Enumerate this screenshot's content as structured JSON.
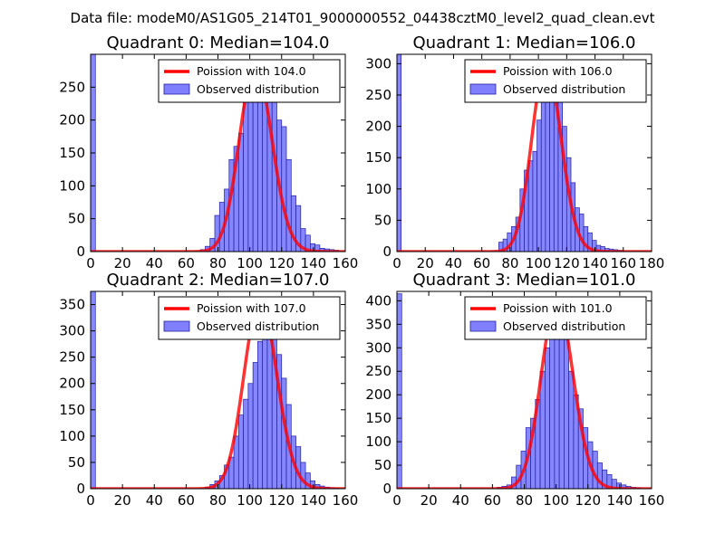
{
  "figure": {
    "title": "Data file: modeM0/AS1G05_214T01_9000000552_04438cztM0_level2_quad_clean.evt"
  },
  "colors": {
    "bar_fill": "#8080ff",
    "bar_edge": "#2020a0",
    "curve": "#ff0000"
  },
  "chart_data": [
    {
      "type": "bar",
      "title": "Quadrant 0: Median=104.0",
      "xlim": [
        0,
        160
      ],
      "ylim": [
        0,
        300
      ],
      "xticks": [
        0,
        20,
        40,
        60,
        80,
        100,
        120,
        140,
        160
      ],
      "yticks": [
        0,
        50,
        100,
        150,
        200,
        250
      ],
      "bin_width": 3,
      "bins": [
        [
          0,
          300
        ],
        [
          69,
          3
        ],
        [
          72,
          8
        ],
        [
          75,
          20
        ],
        [
          78,
          55
        ],
        [
          81,
          75
        ],
        [
          84,
          95
        ],
        [
          87,
          140
        ],
        [
          90,
          160
        ],
        [
          93,
          180
        ],
        [
          96,
          230
        ],
        [
          99,
          250
        ],
        [
          102,
          260
        ],
        [
          105,
          255
        ],
        [
          108,
          270
        ],
        [
          111,
          280
        ],
        [
          114,
          230
        ],
        [
          117,
          200
        ],
        [
          120,
          190
        ],
        [
          123,
          140
        ],
        [
          126,
          85
        ],
        [
          129,
          70
        ],
        [
          132,
          35
        ],
        [
          135,
          25
        ],
        [
          138,
          12
        ],
        [
          141,
          10
        ],
        [
          144,
          5
        ],
        [
          147,
          4
        ],
        [
          150,
          3
        ],
        [
          153,
          2
        ]
      ],
      "curve_mean": 104.0,
      "curve_peak": 283,
      "legend": {
        "curve": "Poission with 104.0",
        "bars": "Observed distribution"
      }
    },
    {
      "type": "bar",
      "title": "Quadrant 1: Median=106.0",
      "xlim": [
        0,
        180
      ],
      "ylim": [
        0,
        315
      ],
      "xticks": [
        0,
        20,
        40,
        60,
        80,
        100,
        120,
        140,
        160,
        180
      ],
      "yticks": [
        0,
        50,
        100,
        150,
        200,
        250,
        300
      ],
      "bin_width": 3,
      "bins": [
        [
          0,
          315
        ],
        [
          72,
          15
        ],
        [
          75,
          20
        ],
        [
          78,
          30
        ],
        [
          81,
          40
        ],
        [
          84,
          55
        ],
        [
          87,
          100
        ],
        [
          90,
          130
        ],
        [
          93,
          145
        ],
        [
          96,
          160
        ],
        [
          99,
          210
        ],
        [
          102,
          245
        ],
        [
          105,
          275
        ],
        [
          108,
          290
        ],
        [
          111,
          305
        ],
        [
          114,
          280
        ],
        [
          117,
          200
        ],
        [
          120,
          150
        ],
        [
          123,
          110
        ],
        [
          126,
          70
        ],
        [
          129,
          60
        ],
        [
          132,
          40
        ],
        [
          135,
          30
        ],
        [
          138,
          18
        ],
        [
          141,
          10
        ],
        [
          144,
          8
        ],
        [
          147,
          5
        ],
        [
          150,
          4
        ],
        [
          153,
          3
        ],
        [
          156,
          2
        ]
      ],
      "curve_mean": 106.0,
      "curve_peak": 300,
      "legend": {
        "curve": "Poission with 106.0",
        "bars": "Observed distribution"
      }
    },
    {
      "type": "bar",
      "title": "Quadrant 2: Median=107.0",
      "xlim": [
        0,
        160
      ],
      "ylim": [
        0,
        375
      ],
      "xticks": [
        0,
        20,
        40,
        60,
        80,
        100,
        120,
        140,
        160
      ],
      "yticks": [
        0,
        50,
        100,
        150,
        200,
        250,
        300,
        350
      ],
      "bin_width": 3,
      "bins": [
        [
          0,
          375
        ],
        [
          72,
          3
        ],
        [
          75,
          8
        ],
        [
          78,
          15
        ],
        [
          81,
          25
        ],
        [
          84,
          45
        ],
        [
          87,
          60
        ],
        [
          90,
          100
        ],
        [
          93,
          140
        ],
        [
          96,
          170
        ],
        [
          99,
          200
        ],
        [
          102,
          240
        ],
        [
          105,
          280
        ],
        [
          108,
          330
        ],
        [
          111,
          345
        ],
        [
          114,
          300
        ],
        [
          117,
          255
        ],
        [
          120,
          210
        ],
        [
          123,
          160
        ],
        [
          126,
          100
        ],
        [
          129,
          80
        ],
        [
          132,
          50
        ],
        [
          135,
          30
        ],
        [
          138,
          15
        ],
        [
          141,
          8
        ],
        [
          144,
          5
        ],
        [
          147,
          3
        ],
        [
          150,
          2
        ],
        [
          153,
          1
        ]
      ],
      "curve_mean": 107.0,
      "curve_peak": 357,
      "legend": {
        "curve": "Poission with 107.0",
        "bars": "Observed distribution"
      }
    },
    {
      "type": "bar",
      "title": "Quadrant 3: Median=101.0",
      "xlim": [
        0,
        160
      ],
      "ylim": [
        0,
        420
      ],
      "xticks": [
        0,
        20,
        40,
        60,
        80,
        100,
        120,
        140,
        160
      ],
      "yticks": [
        0,
        50,
        100,
        150,
        200,
        250,
        300,
        350,
        400
      ],
      "bin_width": 3,
      "bins": [
        [
          0,
          415
        ],
        [
          63,
          3
        ],
        [
          66,
          5
        ],
        [
          69,
          8
        ],
        [
          72,
          25
        ],
        [
          75,
          50
        ],
        [
          78,
          80
        ],
        [
          81,
          130
        ],
        [
          84,
          150
        ],
        [
          87,
          190
        ],
        [
          90,
          250
        ],
        [
          93,
          300
        ],
        [
          96,
          350
        ],
        [
          99,
          390
        ],
        [
          102,
          380
        ],
        [
          105,
          330
        ],
        [
          108,
          250
        ],
        [
          111,
          200
        ],
        [
          114,
          170
        ],
        [
          117,
          130
        ],
        [
          120,
          100
        ],
        [
          123,
          80
        ],
        [
          126,
          55
        ],
        [
          129,
          40
        ],
        [
          132,
          30
        ],
        [
          135,
          20
        ],
        [
          138,
          12
        ],
        [
          141,
          8
        ],
        [
          144,
          5
        ],
        [
          147,
          3
        ],
        [
          150,
          2
        ]
      ],
      "curve_mean": 101.0,
      "curve_peak": 398,
      "legend": {
        "curve": "Poission with 101.0",
        "bars": "Observed distribution"
      }
    }
  ]
}
